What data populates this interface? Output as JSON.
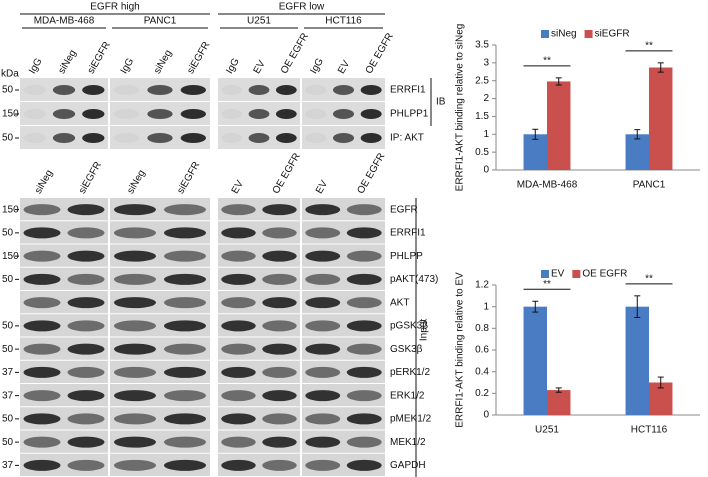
{
  "blot": {
    "groups": [
      {
        "label": "EGFR high",
        "cell_lines": [
          "MDA-MB-468",
          "PANC1"
        ]
      },
      {
        "label": "EGFR low",
        "cell_lines": [
          "U251",
          "HCT116"
        ]
      }
    ],
    "kda_label": "kDa",
    "ip_lanes": [
      [
        "IgG",
        "siNeg",
        "siEGFR"
      ],
      [
        "IgG",
        "siNeg",
        "siEGFR"
      ],
      [
        "IgG",
        "EV",
        "OE EGFR"
      ],
      [
        "IgG",
        "EV",
        "OE EGFR"
      ]
    ],
    "ip_rows": [
      {
        "label": "ERRFI1",
        "kda": 50
      },
      {
        "label": "PHLPP1",
        "kda": 150
      },
      {
        "label": "IP: AKT",
        "kda": 50
      }
    ],
    "ib_label": "IB",
    "input_lanes": [
      [
        "siNeg",
        "siEGFR"
      ],
      [
        "siNeg",
        "siEGFR"
      ],
      [
        "EV",
        "OE EGFR"
      ],
      [
        "EV",
        "OE EGFR"
      ]
    ],
    "input_rows": [
      {
        "label": "EGFR",
        "kda": 150
      },
      {
        "label": "ERRFI1",
        "kda": 50
      },
      {
        "label": "PHLPP",
        "kda": 150
      },
      {
        "label": "pAKT(473)",
        "kda": 50
      },
      {
        "label": "AKT"
      },
      {
        "label": "pGSK3β",
        "kda": 50
      },
      {
        "label": "GSK3β",
        "kda": 50
      },
      {
        "label": "pERK1/2",
        "kda": 37
      },
      {
        "label": "ERK1/2",
        "kda": 37
      },
      {
        "label": "pMEK1/2",
        "kda": 50
      },
      {
        "label": "MEK1/2",
        "kda": 50
      },
      {
        "label": "GAPDH",
        "kda": 37
      }
    ],
    "input_label": "Input"
  },
  "chart_data": [
    {
      "type": "bar",
      "y_label": "ERRFI1-AKT binding relative to siNeg",
      "categories": [
        "MDA-MB-468",
        "PANC1"
      ],
      "series": [
        {
          "name": "siNeg",
          "color": "#4a7cc4",
          "values": [
            1,
            1
          ],
          "errors": [
            0.14,
            0.13
          ]
        },
        {
          "name": "siEGFR",
          "color": "#c9504d",
          "values": [
            2.48,
            2.87
          ],
          "errors": [
            0.1,
            0.13
          ]
        }
      ],
      "significance": [
        "**",
        "**"
      ],
      "ylim": [
        0,
        3.5
      ],
      "yticks": [
        0,
        0.5,
        1,
        1.5,
        2,
        2.5,
        3,
        3.5
      ],
      "legend": "top"
    },
    {
      "type": "bar",
      "y_label": "ERRFI1-AKT binding relative to EV",
      "categories": [
        "U251",
        "HCT116"
      ],
      "series": [
        {
          "name": "EV",
          "color": "#4a7cc4",
          "values": [
            1,
            1
          ],
          "errors": [
            0.05,
            0.1
          ]
        },
        {
          "name": "OE EGFR",
          "color": "#c9504d",
          "values": [
            0.23,
            0.3
          ],
          "errors": [
            0.02,
            0.05
          ]
        }
      ],
      "significance": [
        "**",
        "**"
      ],
      "ylim": [
        0,
        1.2
      ],
      "yticks": [
        0,
        0.2,
        0.4,
        0.6,
        0.8,
        1,
        1.2
      ],
      "legend": "top"
    }
  ]
}
